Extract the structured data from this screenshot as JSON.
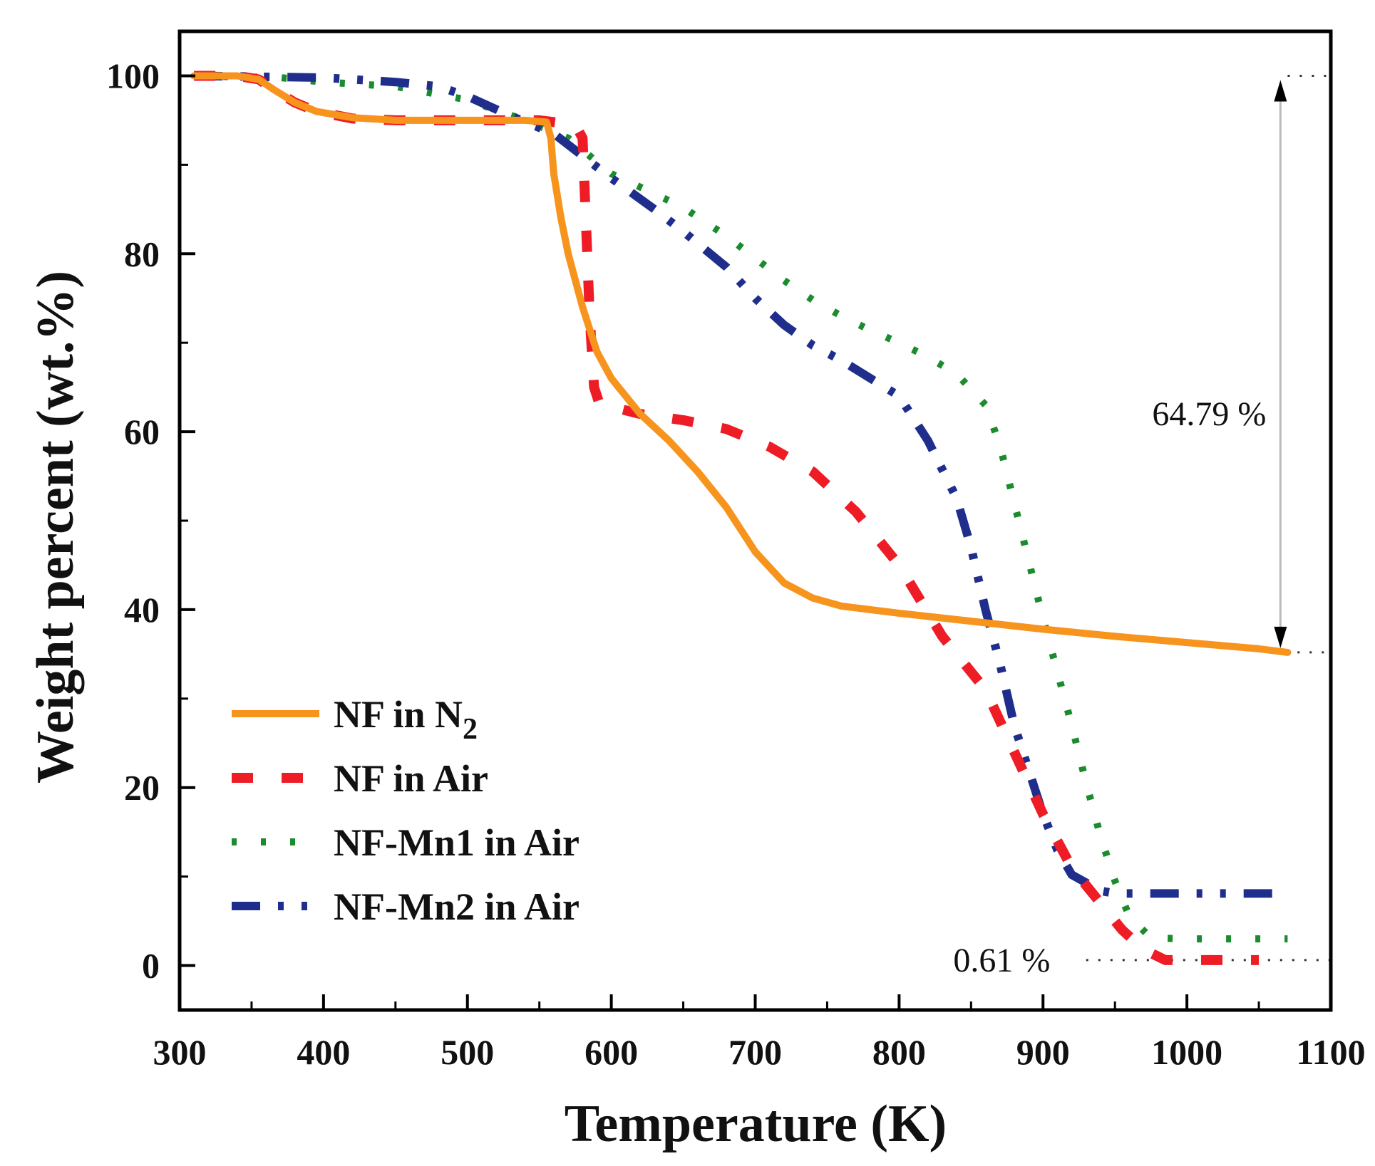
{
  "chart_data": {
    "type": "line",
    "title": "",
    "xlabel": "Temperature (K)",
    "ylabel": "Weight percent (wt.%)",
    "xlim": [
      300,
      1100
    ],
    "ylim": [
      -5,
      105
    ],
    "xticks": [
      300,
      400,
      500,
      600,
      700,
      800,
      900,
      1000,
      1100
    ],
    "yticks": [
      0,
      20,
      40,
      60,
      80,
      100
    ],
    "legend_position": "bottom-left",
    "series": [
      {
        "name": "NF in N",
        "name_subscript": "2",
        "color": "#f7941d",
        "dash": "solid",
        "x": [
          310,
          340,
          355,
          365,
          380,
          395,
          420,
          450,
          500,
          540,
          555,
          558,
          560,
          565,
          570,
          580,
          590,
          600,
          620,
          640,
          660,
          680,
          700,
          720,
          740,
          760,
          780,
          800,
          850,
          900,
          950,
          1000,
          1050,
          1070
        ],
        "y": [
          100,
          100,
          99.6,
          98.5,
          97,
          96,
          95.3,
          95,
          95,
          95,
          94.8,
          93,
          89,
          84,
          80,
          74,
          69,
          66,
          62,
          59,
          55.5,
          51.5,
          46.5,
          43,
          41.3,
          40.4,
          40,
          39.6,
          38.7,
          37.8,
          37,
          36.3,
          35.6,
          35.2
        ]
      },
      {
        "name": "NF in Air",
        "color": "#ee1c25",
        "dash": "dash",
        "x": [
          310,
          340,
          355,
          365,
          380,
          395,
          420,
          450,
          500,
          550,
          575,
          580,
          582,
          585,
          588,
          592,
          600,
          620,
          650,
          680,
          710,
          740,
          770,
          800,
          830,
          860,
          880,
          900,
          920,
          940,
          955,
          970,
          985,
          1050
        ],
        "y": [
          100,
          100,
          99.6,
          98.5,
          97,
          96,
          95.2,
          95,
          95,
          95,
          94.5,
          93,
          85,
          73,
          65,
          63,
          62.8,
          62,
          61.3,
          60.3,
          58.3,
          55.5,
          51,
          45,
          37,
          31,
          24,
          17,
          11,
          7,
          4,
          1.8,
          0.61,
          0.61
        ]
      },
      {
        "name": "NF-Mn1 in Air",
        "color": "#1a8c2d",
        "dash": "dot",
        "x": [
          310,
          370,
          400,
          450,
          500,
          540,
          570,
          600,
          620,
          650,
          680,
          700,
          720,
          740,
          760,
          780,
          800,
          820,
          840,
          860,
          870,
          880,
          890,
          900,
          910,
          920,
          930,
          940,
          950,
          960,
          975,
          1000,
          1070
        ],
        "y": [
          100,
          99.8,
          99.3,
          98.8,
          97.3,
          95,
          93,
          89,
          87.5,
          85.2,
          82,
          79.5,
          77,
          74.8,
          73,
          71.4,
          70,
          68.4,
          66.5,
          63,
          58.5,
          52,
          45.5,
          39,
          33,
          27,
          20.5,
          14.5,
          9.5,
          5.5,
          3.1,
          3,
          3
        ]
      },
      {
        "name": "NF-Mn2 in Air",
        "color": "#1f2e8c",
        "dash": "dashdot",
        "x": [
          310,
          400,
          450,
          480,
          500,
          530,
          560,
          580,
          600,
          630,
          650,
          680,
          700,
          720,
          740,
          760,
          780,
          800,
          820,
          840,
          850,
          860,
          870,
          880,
          890,
          900,
          910,
          920,
          940,
          950,
          1070
        ],
        "y": [
          100,
          99.8,
          99.3,
          98.8,
          97.7,
          95.5,
          93.5,
          91,
          88.5,
          85,
          82.5,
          78.5,
          75,
          72,
          69.7,
          68,
          66,
          64,
          59,
          52.5,
          47,
          40,
          34,
          27,
          22,
          17,
          13,
          10.2,
          8.4,
          8.1,
          8.1
        ]
      }
    ],
    "reference_lines": [
      {
        "y": 100,
        "x_from": 1070,
        "x_to": 1100
      },
      {
        "y": 35.2,
        "x_from": 1060,
        "x_to": 1100
      },
      {
        "y": 0.61,
        "x_from": 930,
        "x_to": 1100
      }
    ],
    "annotations": [
      {
        "text": "64.79 %",
        "x": 1060,
        "y": 62,
        "arrow_from": 100,
        "arrow_to": 35.2,
        "arrow_x": 1065
      },
      {
        "text": "0.61 %",
        "x": 905,
        "y": 0.61
      }
    ]
  }
}
